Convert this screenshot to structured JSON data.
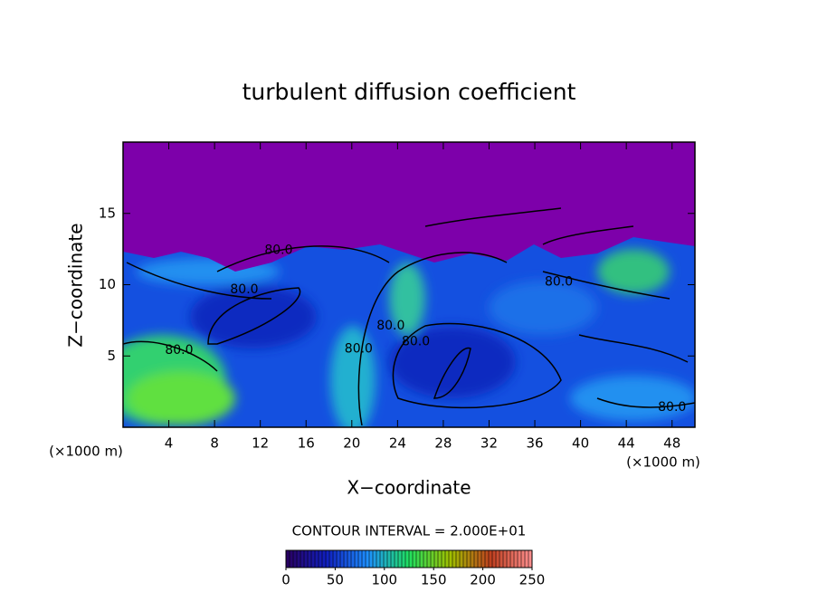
{
  "chart_data": {
    "type": "contour",
    "title": "turbulent diffusion coefficient",
    "xlabel": "X−coordinate",
    "ylabel": "Z−coordinate",
    "x_unit": "(×1000 m)",
    "x_unit_right": "(×1000 m)",
    "xlim": [
      0,
      50
    ],
    "ylim": [
      0,
      20
    ],
    "xticks": [
      4,
      8,
      12,
      16,
      20,
      24,
      28,
      32,
      36,
      40,
      44,
      48
    ],
    "yticks": [
      5,
      10,
      15
    ],
    "contour_interval_text": "CONTOUR INTERVAL = 2.000E+01",
    "contour_labels": [
      {
        "x": 13.6,
        "y": 12.4,
        "value": 80,
        "label": "80.0"
      },
      {
        "x": 10.6,
        "y": 9.65,
        "value": 80,
        "label": "80.0"
      },
      {
        "x": 4.9,
        "y": 5.4,
        "value": 80,
        "label": "80.0"
      },
      {
        "x": 20.6,
        "y": 5.5,
        "value": 80,
        "label": "80.0"
      },
      {
        "x": 23.4,
        "y": 7.1,
        "value": 80,
        "label": "80.0"
      },
      {
        "x": 25.6,
        "y": 6.0,
        "value": 80,
        "label": "80.0"
      },
      {
        "x": 38.1,
        "y": 10.2,
        "value": 80,
        "label": "80.0"
      },
      {
        "x": 48,
        "y": 1.4,
        "value": 80,
        "label": "80.0"
      }
    ],
    "colorbar": {
      "lim": [
        0,
        250
      ],
      "ticks": [
        0,
        50,
        100,
        150,
        200,
        250
      ],
      "colors": [
        "#2a0060",
        "#1020c0",
        "#1e90ff",
        "#20e060",
        "#a0c000",
        "#c04020",
        "#ff9090"
      ]
    }
  }
}
